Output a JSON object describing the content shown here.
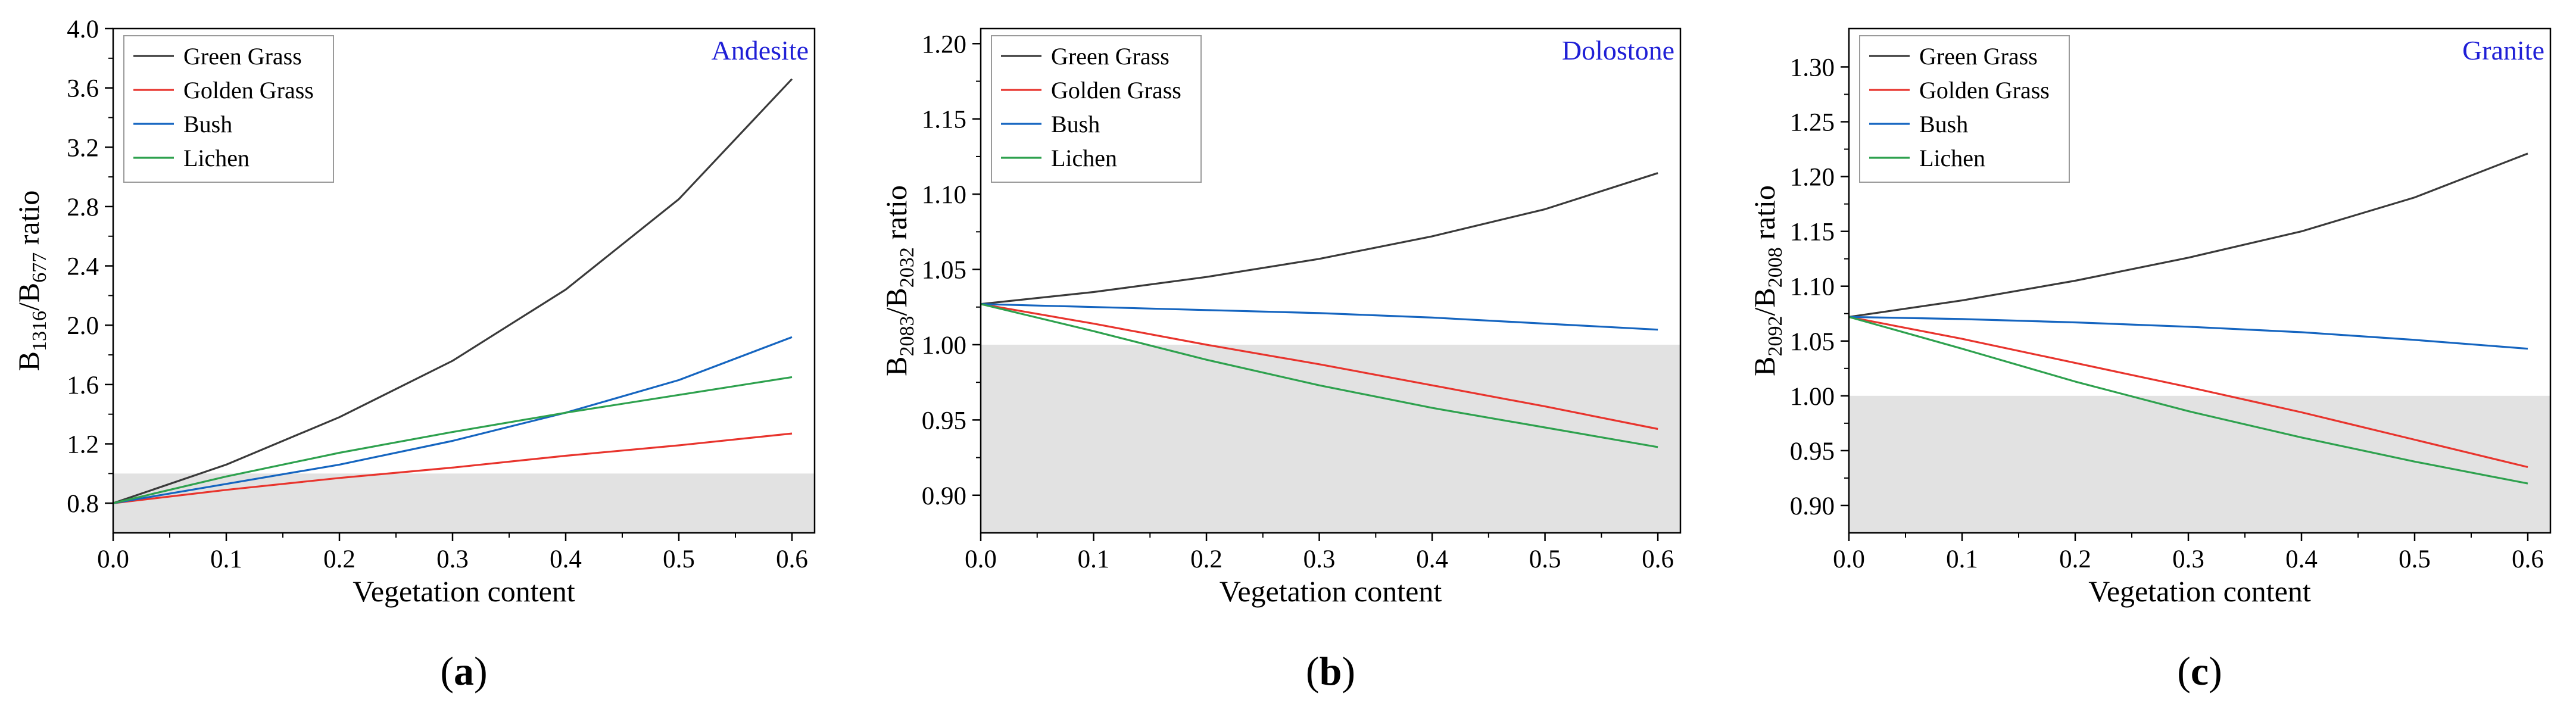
{
  "figure": {
    "x_label": "Vegetation content",
    "band_prefix": "B",
    "ratio_word": " ratio",
    "colors": {
      "Green Grass": "#3a3a3a",
      "Golden Grass": "#e8342d",
      "Bush": "#1565c0",
      "Lichen": "#2ea14e",
      "panel_name": "#1f1fd6",
      "shade": "#e2e2e2"
    }
  },
  "chart_data": [
    {
      "type": "line",
      "panel_label": "a",
      "rock": "Andesite",
      "ylabel_num": "1316",
      "ylabel_den": "677",
      "xlabel": "Vegetation content",
      "xlim": [
        0,
        0.62
      ],
      "ylim": [
        0.6,
        4.0
      ],
      "x_ticks": [
        "0.0",
        "0.1",
        "0.2",
        "0.3",
        "0.4",
        "0.5",
        "0.6"
      ],
      "y_ticks": [
        "0.8",
        "1.2",
        "1.6",
        "2.0",
        "2.4",
        "2.8",
        "3.2",
        "3.6",
        "4.0"
      ],
      "shaded_below": 1.0,
      "x": [
        0,
        0.1,
        0.2,
        0.3,
        0.4,
        0.5,
        0.6
      ],
      "series": [
        {
          "name": "Green Grass",
          "values": [
            0.8,
            1.06,
            1.38,
            1.76,
            2.24,
            2.85,
            3.66
          ]
        },
        {
          "name": "Golden Grass",
          "values": [
            0.8,
            0.89,
            0.97,
            1.04,
            1.12,
            1.19,
            1.27
          ]
        },
        {
          "name": "Bush",
          "values": [
            0.8,
            0.93,
            1.06,
            1.22,
            1.41,
            1.63,
            1.92
          ]
        },
        {
          "name": "Lichen",
          "values": [
            0.8,
            0.98,
            1.14,
            1.28,
            1.41,
            1.53,
            1.65
          ]
        }
      ],
      "legend": [
        "Green Grass",
        "Golden Grass",
        "Bush",
        "Lichen"
      ],
      "legend_position": "top-left"
    },
    {
      "type": "line",
      "panel_label": "b",
      "rock": "Dolostone",
      "ylabel_num": "2083",
      "ylabel_den": "2032",
      "xlabel": "Vegetation content",
      "xlim": [
        0,
        0.62
      ],
      "ylim": [
        0.875,
        1.21
      ],
      "x_ticks": [
        "0.0",
        "0.1",
        "0.2",
        "0.3",
        "0.4",
        "0.5",
        "0.6"
      ],
      "y_ticks": [
        "0.90",
        "0.95",
        "1.00",
        "1.05",
        "1.10",
        "1.15",
        "1.20"
      ],
      "shaded_below": 1.0,
      "x": [
        0,
        0.1,
        0.2,
        0.3,
        0.4,
        0.5,
        0.6
      ],
      "series": [
        {
          "name": "Green Grass",
          "values": [
            1.027,
            1.035,
            1.045,
            1.057,
            1.072,
            1.09,
            1.114
          ]
        },
        {
          "name": "Golden Grass",
          "values": [
            1.027,
            1.014,
            1.0,
            0.987,
            0.973,
            0.959,
            0.944
          ]
        },
        {
          "name": "Bush",
          "values": [
            1.027,
            1.025,
            1.023,
            1.021,
            1.018,
            1.014,
            1.01
          ]
        },
        {
          "name": "Lichen",
          "values": [
            1.027,
            1.009,
            0.99,
            0.973,
            0.958,
            0.945,
            0.932
          ]
        }
      ],
      "legend": [
        "Green Grass",
        "Golden Grass",
        "Bush",
        "Lichen"
      ],
      "legend_position": "top-left"
    },
    {
      "type": "line",
      "panel_label": "c",
      "rock": "Granite",
      "ylabel_num": "2092",
      "ylabel_den": "2008",
      "xlabel": "Vegetation content",
      "xlim": [
        0,
        0.62
      ],
      "ylim": [
        0.875,
        1.335
      ],
      "x_ticks": [
        "0.0",
        "0.1",
        "0.2",
        "0.3",
        "0.4",
        "0.5",
        "0.6"
      ],
      "y_ticks": [
        "0.90",
        "0.95",
        "1.00",
        "1.05",
        "1.10",
        "1.15",
        "1.20",
        "1.25",
        "1.30"
      ],
      "shaded_below": 1.0,
      "x": [
        0,
        0.1,
        0.2,
        0.3,
        0.4,
        0.5,
        0.6
      ],
      "series": [
        {
          "name": "Green Grass",
          "values": [
            1.072,
            1.087,
            1.105,
            1.126,
            1.15,
            1.181,
            1.221
          ]
        },
        {
          "name": "Golden Grass",
          "values": [
            1.072,
            1.052,
            1.03,
            1.008,
            0.985,
            0.96,
            0.935
          ]
        },
        {
          "name": "Bush",
          "values": [
            1.072,
            1.07,
            1.067,
            1.063,
            1.058,
            1.051,
            1.043
          ]
        },
        {
          "name": "Lichen",
          "values": [
            1.072,
            1.043,
            1.013,
            0.986,
            0.962,
            0.94,
            0.92
          ]
        }
      ],
      "legend": [
        "Green Grass",
        "Golden Grass",
        "Bush",
        "Lichen"
      ],
      "legend_position": "top-left"
    }
  ]
}
